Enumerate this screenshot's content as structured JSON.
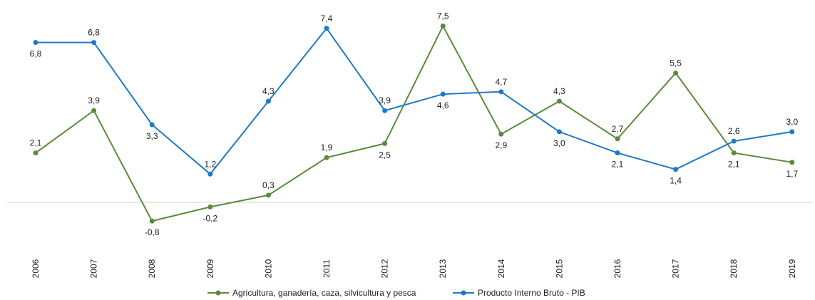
{
  "chart_data": {
    "type": "line",
    "categories": [
      "2006",
      "2007",
      "2008",
      "2009",
      "2010",
      "2011",
      "2012",
      "2013",
      "2014",
      "2015",
      "2016",
      "2017",
      "2018",
      "2019"
    ],
    "series": [
      {
        "name": "Agricultura, ganadería, caza, silvicultura y pesca",
        "color": "#5a8a3c",
        "values": [
          2.1,
          3.9,
          -0.8,
          -0.2,
          0.3,
          1.9,
          2.5,
          7.5,
          2.9,
          4.3,
          2.7,
          5.5,
          2.1,
          1.7
        ],
        "labels": [
          "2,1",
          "3,9",
          "-0,8",
          "-0,2",
          "0,3",
          "1,9",
          "2,5",
          "7,5",
          "2,9",
          "4,3",
          "2,7",
          "5,5",
          "2,1",
          "1,7"
        ]
      },
      {
        "name": "Producto Interno Bruto - PIB",
        "color": "#1f78c8",
        "values": [
          6.8,
          6.8,
          3.3,
          1.2,
          4.3,
          7.4,
          3.9,
          4.6,
          4.7,
          3.0,
          2.1,
          1.4,
          2.6,
          3.0
        ],
        "labels": [
          "6,8",
          "6,8",
          "3,3",
          "1,2",
          "4,3",
          "7,4",
          "3,9",
          "4,6",
          "4,7",
          "3,0",
          "2,1",
          "1,4",
          "2,6",
          "3,0"
        ]
      }
    ],
    "ylim": [
      -1.4,
      8.0
    ],
    "zero_line": true,
    "legend_position": "bottom"
  }
}
